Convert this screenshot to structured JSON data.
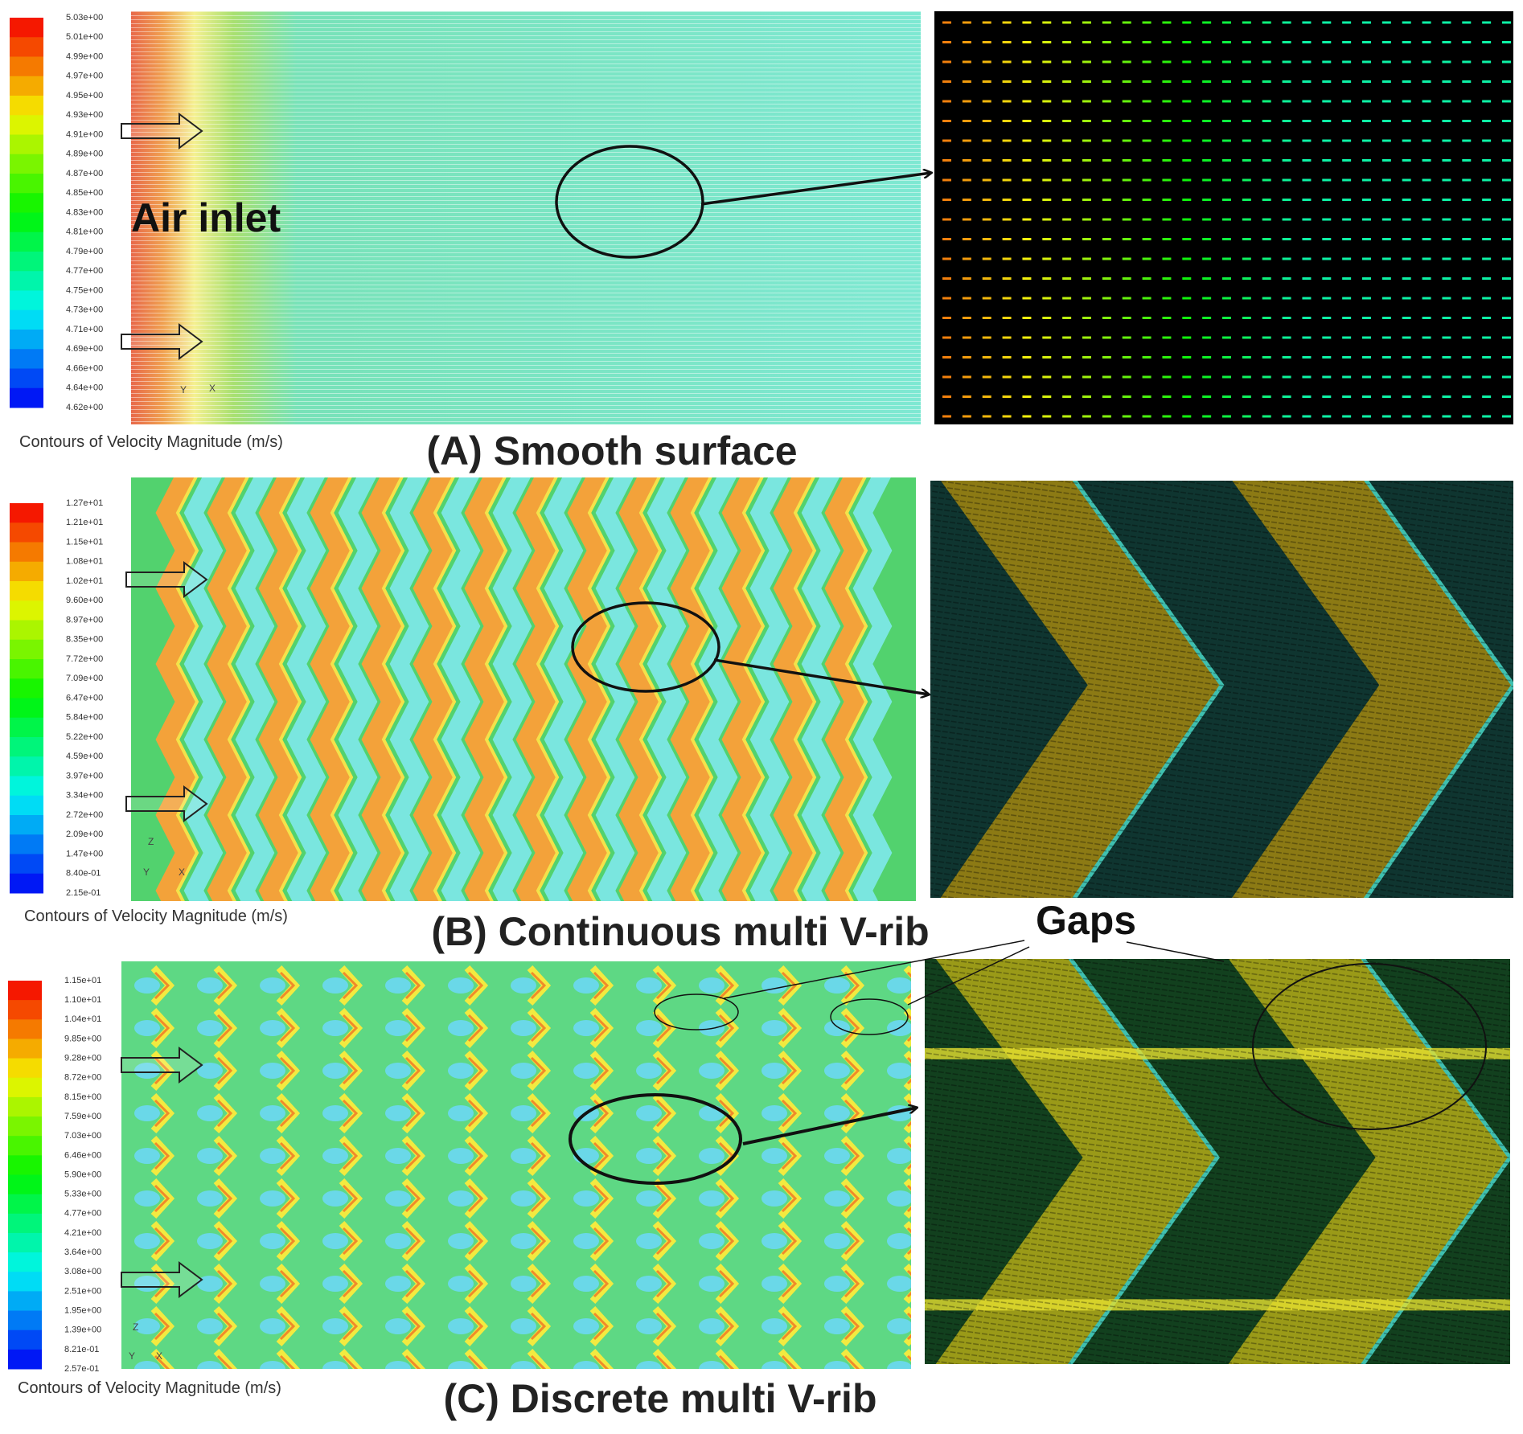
{
  "panels": [
    {
      "title": "(A) Smooth surface",
      "legend_caption": "Contours of Velocity Magnitude (m/s)",
      "colorbar_labels": [
        "5.03e+00",
        "5.01e+00",
        "4.99e+00",
        "4.97e+00",
        "4.95e+00",
        "4.93e+00",
        "4.91e+00",
        "4.89e+00",
        "4.87e+00",
        "4.85e+00",
        "4.83e+00",
        "4.81e+00",
        "4.79e+00",
        "4.77e+00",
        "4.75e+00",
        "4.73e+00",
        "4.71e+00",
        "4.69e+00",
        "4.66e+00",
        "4.64e+00",
        "4.62e+00"
      ],
      "axis_labels": [
        "Y",
        "X"
      ]
    },
    {
      "title": "(B) Continuous multi V-rib",
      "legend_caption": "Contours of Velocity Magnitude (m/s)",
      "colorbar_labels": [
        "1.27e+01",
        "1.21e+01",
        "1.15e+01",
        "1.08e+01",
        "1.02e+01",
        "9.60e+00",
        "8.97e+00",
        "8.35e+00",
        "7.72e+00",
        "7.09e+00",
        "6.47e+00",
        "5.84e+00",
        "5.22e+00",
        "4.59e+00",
        "3.97e+00",
        "3.34e+00",
        "2.72e+00",
        "2.09e+00",
        "1.47e+00",
        "8.40e-01",
        "2.15e-01"
      ],
      "axis_labels": [
        "Z",
        "Y",
        "X"
      ]
    },
    {
      "title": "(C) Discrete multi V-rib",
      "legend_caption": "Contours of Velocity Magnitude (m/s)",
      "colorbar_labels": [
        "1.15e+01",
        "1.10e+01",
        "1.04e+01",
        "9.85e+00",
        "9.28e+00",
        "8.72e+00",
        "8.15e+00",
        "7.59e+00",
        "7.03e+00",
        "6.46e+00",
        "5.90e+00",
        "5.33e+00",
        "4.77e+00",
        "4.21e+00",
        "3.64e+00",
        "3.08e+00",
        "2.51e+00",
        "1.95e+00",
        "1.39e+00",
        "8.21e-01",
        "2.57e-01"
      ],
      "axis_labels": [
        "Z",
        "Y",
        "X"
      ]
    }
  ],
  "annotations": {
    "air_inlet": "Air inlet",
    "gaps": "Gaps"
  }
}
